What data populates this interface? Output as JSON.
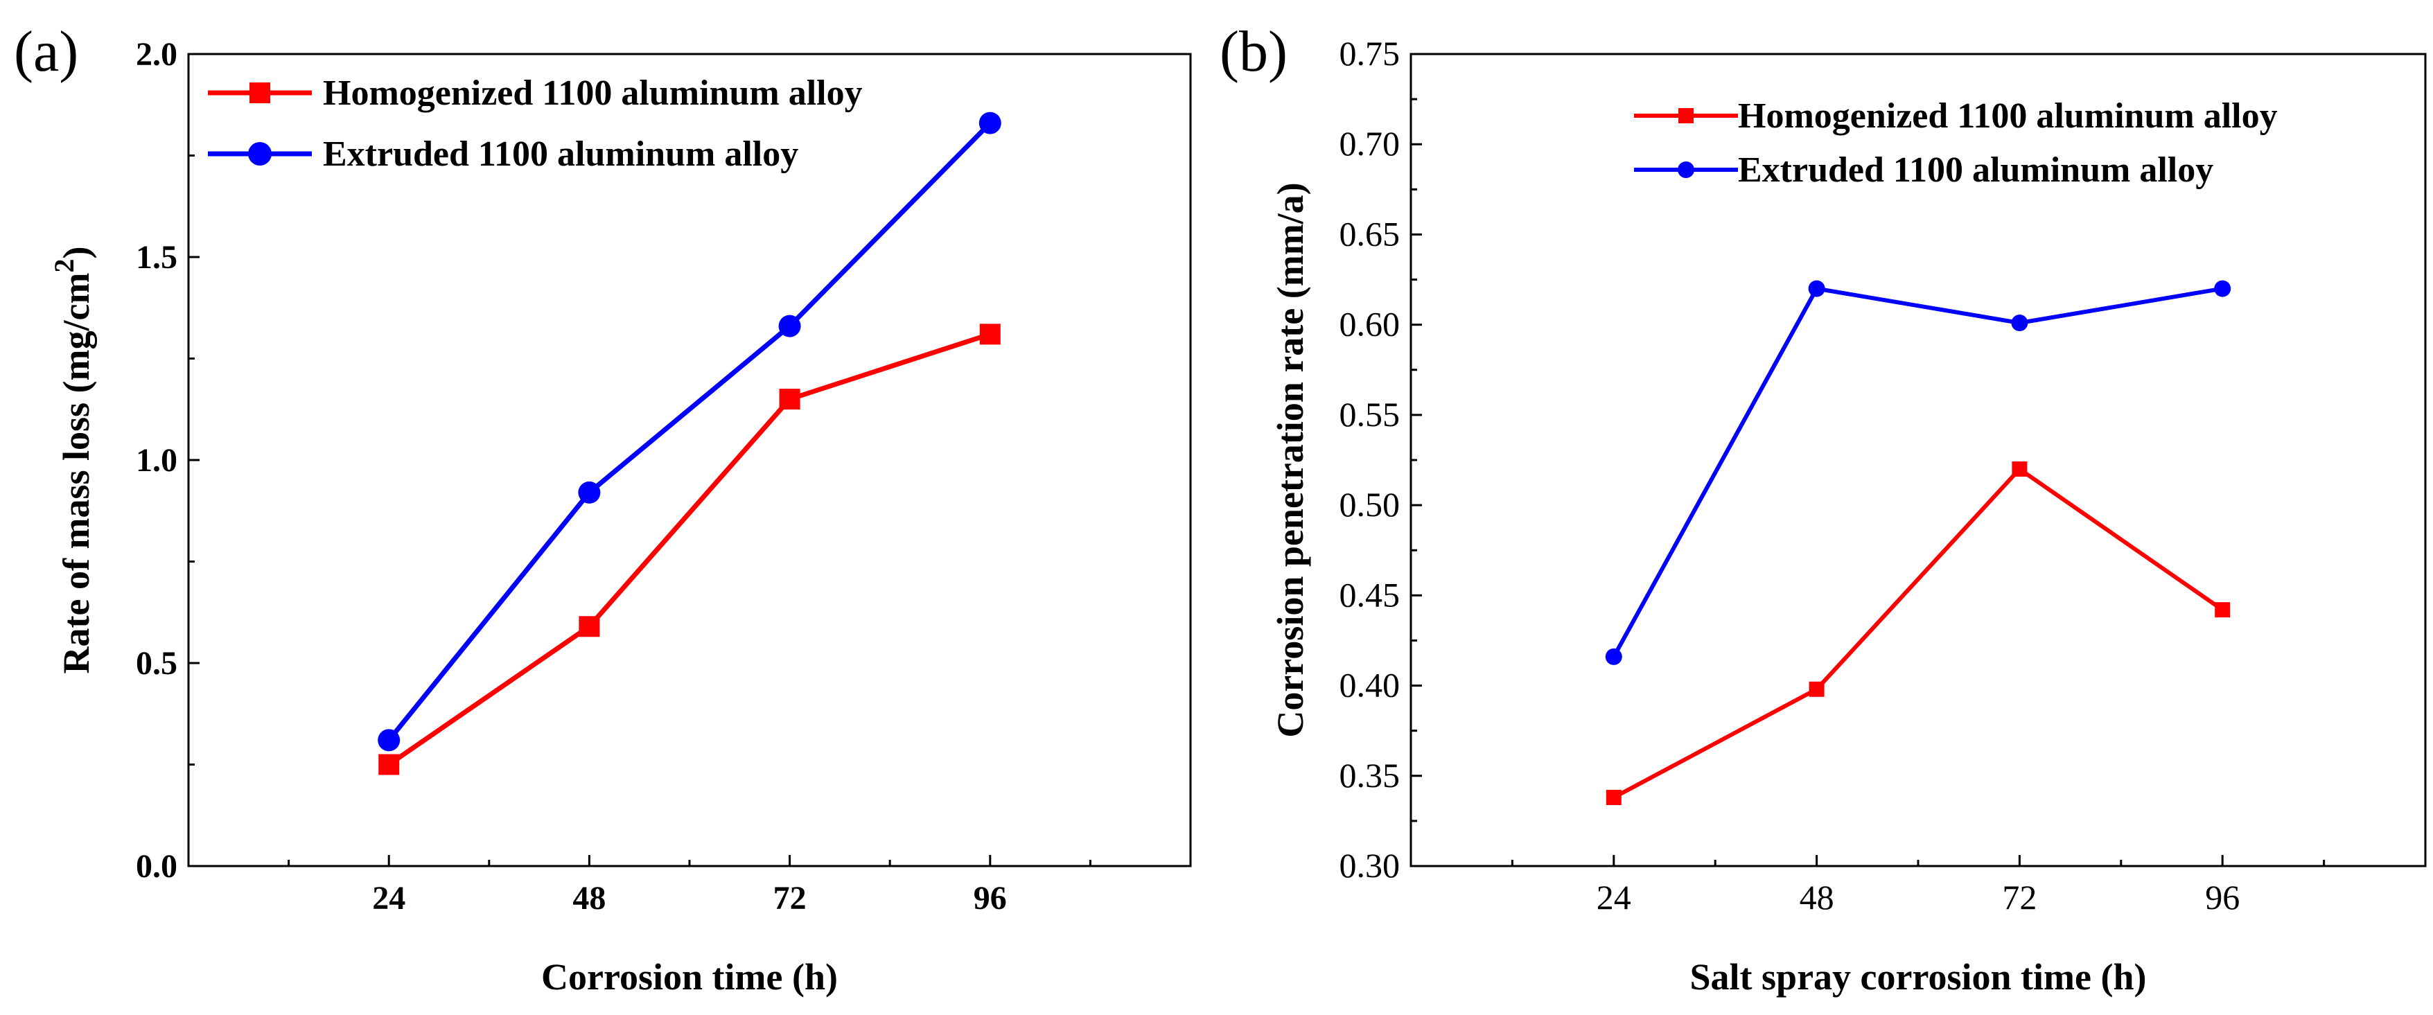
{
  "figure": {
    "panel_labels": [
      "(a)",
      "(b)"
    ]
  },
  "chart_data": [
    {
      "type": "line",
      "panel": "(a)",
      "title": "",
      "xlabel": "Corrosion time (h)",
      "ylabel": "Rate of mass loss (mg/cm",
      "ylabel_superscript": "2",
      "ylabel_suffix": ")",
      "categories": [
        "24",
        "48",
        "72",
        "96"
      ],
      "x": [
        24,
        48,
        72,
        96
      ],
      "xlim": [
        0,
        120
      ],
      "ylim": [
        0,
        2.0
      ],
      "yticks": [
        "0.0",
        "0.5",
        "1.0",
        "1.5",
        "2.0"
      ],
      "grid": false,
      "legend_position": "top-left",
      "series": [
        {
          "name": "Homogenized 1100 aluminum alloy",
          "color": "#ff0000",
          "marker": "square",
          "values": [
            0.25,
            0.59,
            1.15,
            1.31
          ]
        },
        {
          "name": "Extruded 1100 aluminum alloy",
          "color": "#0000ff",
          "marker": "circle",
          "values": [
            0.31,
            0.92,
            1.33,
            1.83
          ]
        }
      ]
    },
    {
      "type": "line",
      "panel": "(b)",
      "title": "",
      "xlabel": "Salt spray corrosion time (h)",
      "ylabel": "Corrosion penetration rate (mm/a)",
      "categories": [
        "24",
        "48",
        "72",
        "96"
      ],
      "x": [
        24,
        48,
        72,
        96
      ],
      "xlim": [
        0,
        120
      ],
      "ylim": [
        0.3,
        0.75
      ],
      "yticks": [
        "0.30",
        "0.35",
        "0.40",
        "0.45",
        "0.50",
        "0.55",
        "0.60",
        "0.65",
        "0.70",
        "0.75"
      ],
      "grid": false,
      "legend_position": "top-right",
      "series": [
        {
          "name": "Homogenized 1100 aluminum alloy",
          "color": "#ff0000",
          "marker": "square",
          "values": [
            0.338,
            0.398,
            0.52,
            0.442
          ]
        },
        {
          "name": "Extruded 1100 aluminum alloy",
          "color": "#0000ff",
          "marker": "circle",
          "values": [
            0.416,
            0.62,
            0.601,
            0.62
          ]
        }
      ]
    }
  ]
}
